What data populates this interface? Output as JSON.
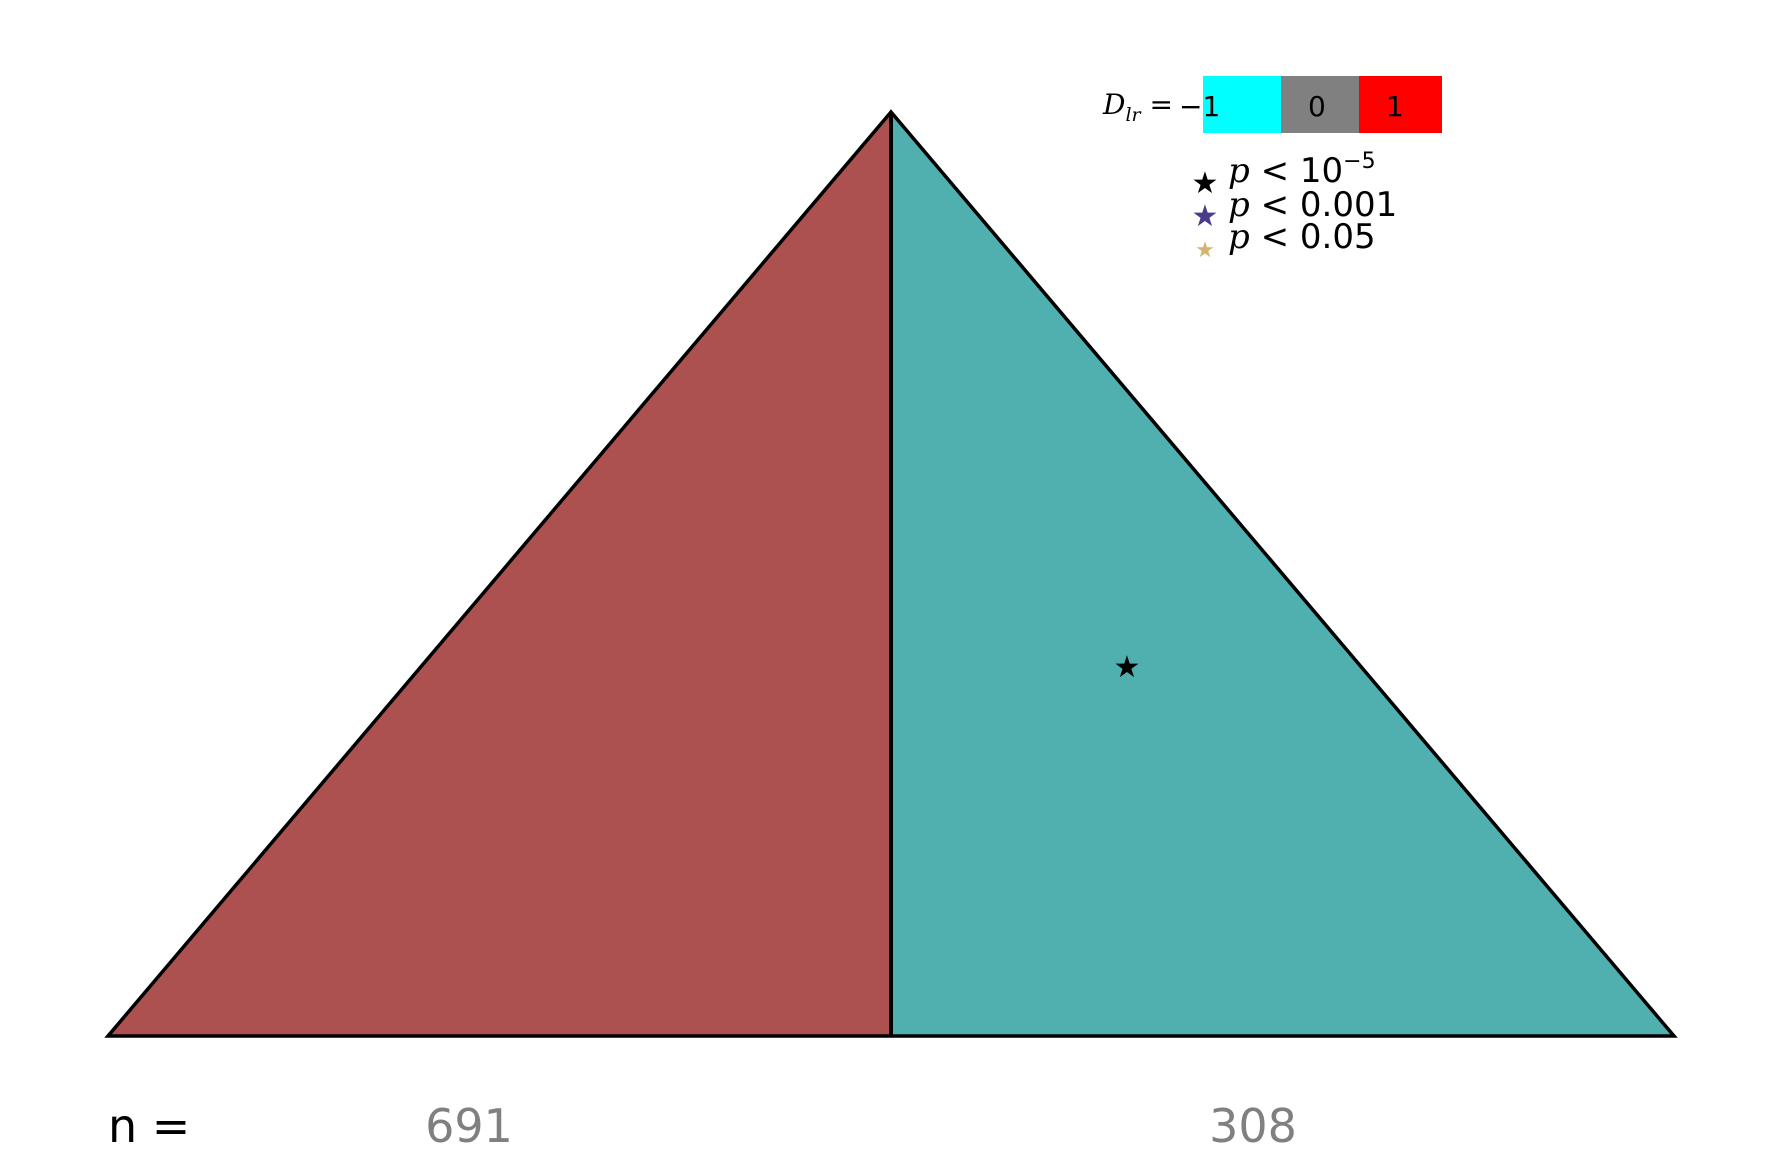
{
  "chart_data": {
    "type": "ternary-triangle",
    "regions": [
      {
        "side": "left",
        "color": "#ad5050",
        "n": "691"
      },
      {
        "side": "right",
        "color": "#50afaf",
        "n": "308"
      }
    ],
    "significance_markers": [
      {
        "region": "right",
        "symbol": "★",
        "color": "#000000",
        "level": "p < 10^-5"
      }
    ],
    "n_label": "n =",
    "colorbar": {
      "label_var": "D",
      "label_sub": "lr",
      "label_eq": " = ",
      "stops": [
        {
          "value": "−1",
          "color": "#00ffff"
        },
        {
          "value": "0",
          "color": "#808080"
        },
        {
          "value": "1",
          "color": "#ff0000"
        }
      ]
    },
    "p_legend": [
      {
        "symbol": "★",
        "color": "#000000",
        "p": "p",
        "rel": " < ",
        "value": "10",
        "exp": "−5"
      },
      {
        "symbol": "★",
        "color": "#483d8b",
        "p": "p",
        "rel": " < ",
        "value": "0.001",
        "exp": ""
      },
      {
        "symbol": "★",
        "color": "#d4b46e",
        "p": "p",
        "rel": " < ",
        "value": "0.05",
        "exp": ""
      }
    ]
  }
}
